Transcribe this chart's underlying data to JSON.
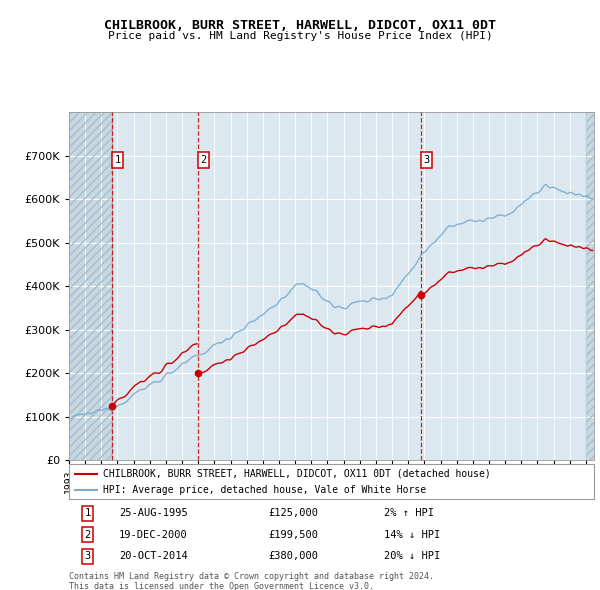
{
  "title": "CHILBROOK, BURR STREET, HARWELL, DIDCOT, OX11 0DT",
  "subtitle": "Price paid vs. HM Land Registry's House Price Index (HPI)",
  "legend_line1": "CHILBROOK, BURR STREET, HARWELL, DIDCOT, OX11 0DT (detached house)",
  "legend_line2": "HPI: Average price, detached house, Vale of White Horse",
  "transactions": [
    {
      "num": 1,
      "date": "25-AUG-1995",
      "year": 1995.65,
      "price": 125000,
      "pct": "2%",
      "dir": "↑"
    },
    {
      "num": 2,
      "date": "19-DEC-2000",
      "year": 2000.97,
      "price": 199500,
      "pct": "14%",
      "dir": "↓"
    },
    {
      "num": 3,
      "date": "20-OCT-2014",
      "year": 2014.8,
      "price": 380000,
      "pct": "20%",
      "dir": "↓"
    }
  ],
  "footnote1": "Contains HM Land Registry data © Crown copyright and database right 2024.",
  "footnote2": "This data is licensed under the Open Government Licence v3.0.",
  "hpi_color": "#7aaad0",
  "price_color": "#cc0000",
  "bg_color": "#dce8f0",
  "ylim": [
    0,
    800000
  ],
  "yticks": [
    0,
    100000,
    200000,
    300000,
    400000,
    500000,
    600000,
    700000
  ],
  "xlim_start": 1993.0,
  "xlim_end": 2025.5
}
